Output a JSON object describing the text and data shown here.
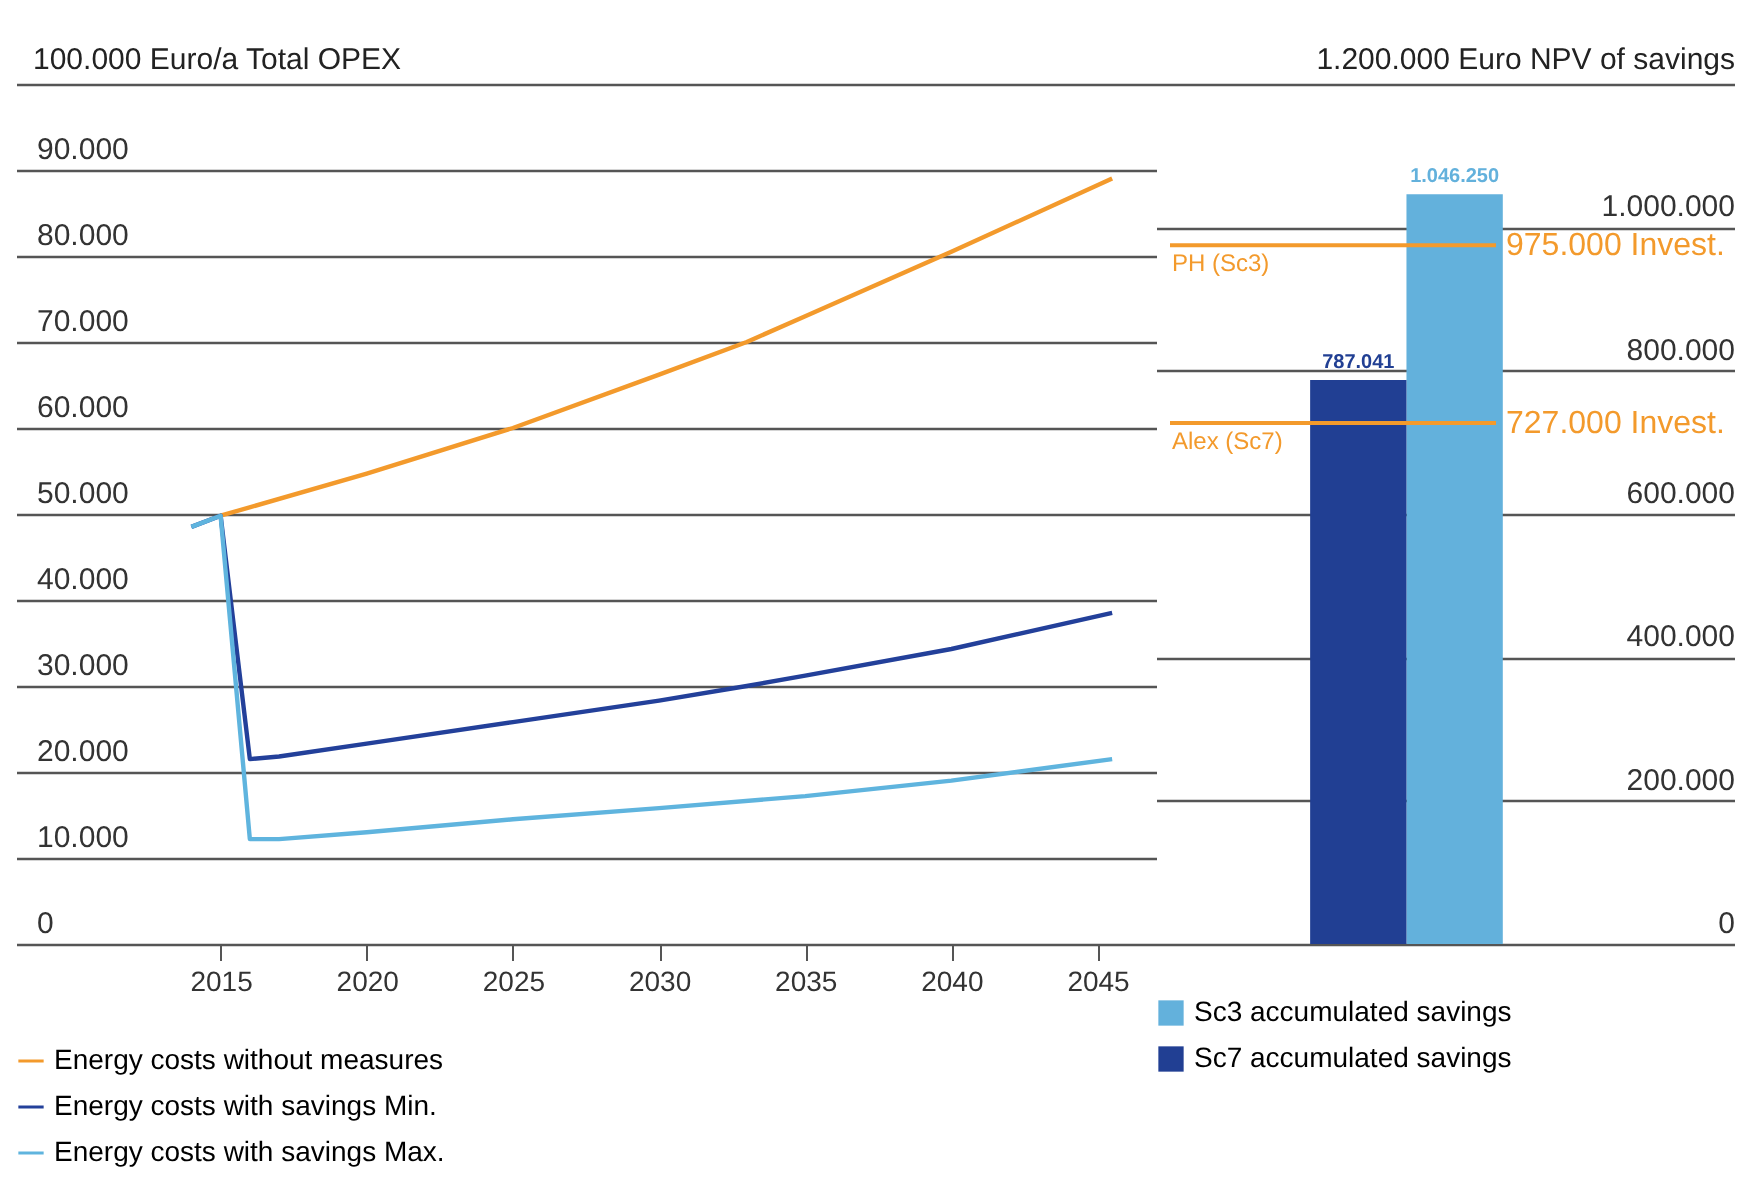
{
  "chart_data": [
    {
      "type": "line",
      "ylabel": "100.000 Euro/a Total OPEX",
      "xlim": [
        2008,
        2047
      ],
      "xticks": [
        2015,
        2020,
        2025,
        2030,
        2035,
        2040,
        2045
      ],
      "ylim": [
        0,
        100000
      ],
      "yticks": [
        {
          "value": 0,
          "label": "0"
        },
        {
          "value": 10000,
          "label": "10.000"
        },
        {
          "value": 20000,
          "label": "20.000"
        },
        {
          "value": 30000,
          "label": "30.000"
        },
        {
          "value": 40000,
          "label": "40.000"
        },
        {
          "value": 50000,
          "label": "50.000"
        },
        {
          "value": 60000,
          "label": "60.000"
        },
        {
          "value": 70000,
          "label": "70.000"
        },
        {
          "value": 80000,
          "label": "80.000"
        },
        {
          "value": 90000,
          "label": "90.000"
        },
        {
          "value": 100000,
          "label": null
        }
      ],
      "grid": "y",
      "legend": "bottom",
      "line_style": "solid",
      "series": [
        {
          "name": "Energy costs without measures",
          "color": "#f39a2c",
          "x": [
            2015,
            2020,
            2025,
            2030,
            2033,
            2035,
            2040,
            2045.5
          ],
          "values": [
            49800,
            54700,
            60000,
            66200,
            70000,
            73000,
            80500,
            89000
          ]
        },
        {
          "name": "Energy costs with savings Min.",
          "color": "#23409a",
          "x": [
            2014,
            2015,
            2016,
            2017,
            2020,
            2025,
            2030,
            2033,
            2035,
            2040,
            2045.5
          ],
          "values": [
            48500,
            49800,
            21500,
            21800,
            23300,
            25800,
            28300,
            30000,
            31200,
            34300,
            38500
          ]
        },
        {
          "name": "Energy costs with savings Max.",
          "color": "#5fb4de",
          "x": [
            2014,
            2015,
            2016,
            2017,
            2020,
            2025,
            2030,
            2035,
            2040,
            2045.5
          ],
          "values": [
            48500,
            49800,
            12200,
            12200,
            13000,
            14500,
            15800,
            17200,
            19000,
            21500
          ]
        }
      ]
    },
    {
      "type": "bar",
      "ylabel": "1.200.000 Euro NPV of savings",
      "categories": [
        null
      ],
      "ylim": [
        0,
        1200000
      ],
      "yticks": [
        {
          "value": 0,
          "label": "0"
        },
        {
          "value": 200000,
          "label": "200.000"
        },
        {
          "value": 400000,
          "label": "400.000"
        },
        {
          "value": 600000,
          "label": "600.000"
        },
        {
          "value": 800000,
          "label": "800.000"
        },
        {
          "value": 1000000,
          "label": "1.000.000"
        },
        {
          "value": 1200000,
          "label": null
        }
      ],
      "grid": "y",
      "legend": "bottom",
      "series": [
        {
          "name": "Sc3 accumulated savings",
          "color": "#63b1dc",
          "values": [
            1046250
          ],
          "value_labels": [
            "1.046.250"
          ]
        },
        {
          "name": "Sc7 accumulated savings",
          "color": "#213f93",
          "values": [
            787041
          ],
          "value_labels": [
            "787.041"
          ]
        }
      ],
      "ref_lines": [
        {
          "axis": "y",
          "value": 975000,
          "label": "975.000 Invest.",
          "color": "#f39a2c"
        },
        {
          "axis": "y",
          "value": 727000,
          "label": "727.000 Invest.",
          "color": "#f39a2c"
        }
      ],
      "annotations": [
        {
          "text": "PH (Sc3)",
          "y": 975000
        },
        {
          "text": "Alex (Sc7)",
          "y": 727000
        }
      ]
    }
  ]
}
